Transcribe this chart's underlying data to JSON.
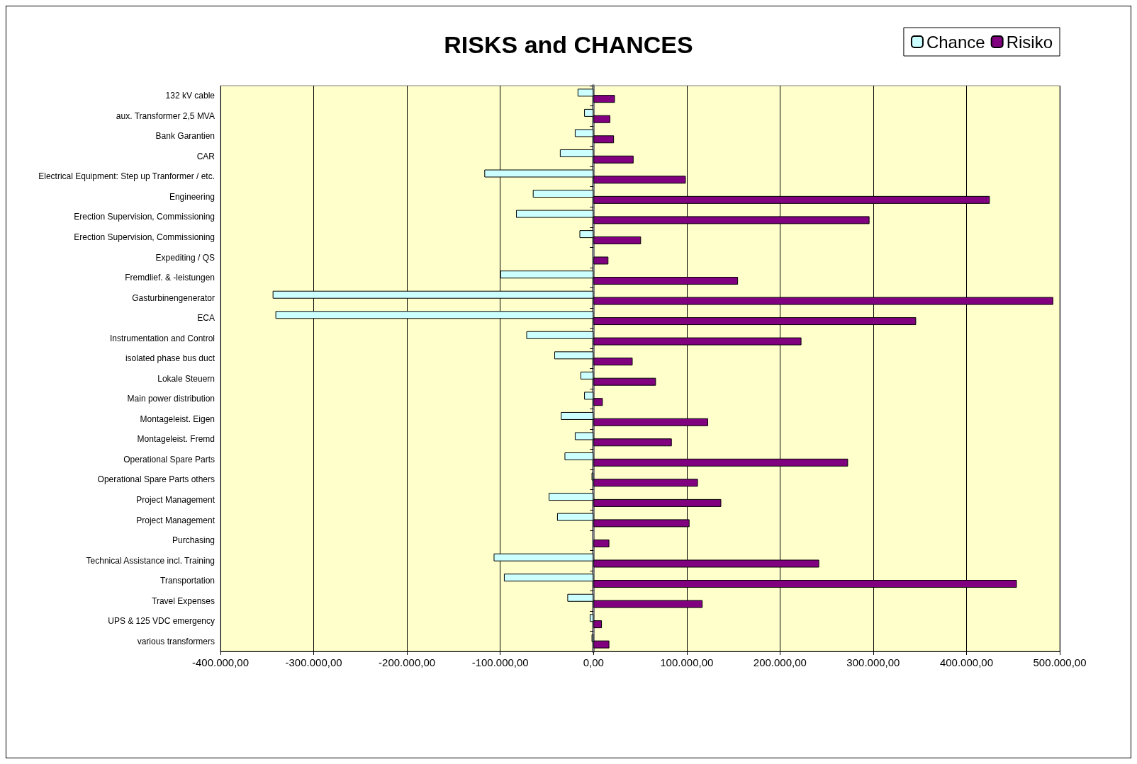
{
  "chart_data": {
    "type": "bar",
    "orientation": "horizontal",
    "title": "RISKS and CHANCES",
    "categories": [
      "132 kV cable",
      "aux. Transformer 2,5 MVA",
      "Bank Garantien",
      "CAR",
      "Electrical Equipment: Step up Tranformer / etc.",
      "Engineering",
      "Erection Supervision, Commissioning",
      "Erection Supervision, Commissioning",
      "Expediting / QS",
      "Fremdlief. & -leistungen",
      "Gasturbinengenerator",
      "ECA",
      "Instrumentation and Control",
      "isolated phase bus duct",
      "Lokale Steuern",
      "Main power distribution",
      "Montageleist. Eigen",
      "Montageleist. Fremd",
      "Operational Spare Parts",
      "Operational Spare Parts others",
      "Project Management",
      "Project Management",
      "Purchasing",
      "Technical Assistance incl. Training",
      "Transportation",
      "Travel Expenses",
      "UPS & 125 VDC emergency",
      "various transformers"
    ],
    "series": [
      {
        "name": "Chance",
        "color": "#ccffff",
        "values": [
          -17000,
          -10000,
          -20000,
          -36000,
          -117000,
          -65000,
          -83000,
          -15000,
          null,
          -100000,
          -344000,
          -341000,
          -72000,
          -42000,
          -14000,
          -10000,
          -35000,
          -20000,
          -31000,
          -2000,
          -48000,
          -39000,
          null,
          -107000,
          -96000,
          -28000,
          -4000,
          -2000
        ]
      },
      {
        "name": "Risiko",
        "color": "#800080",
        "values": [
          23000,
          18000,
          22000,
          43000,
          99000,
          425000,
          296000,
          51000,
          16000,
          155000,
          493000,
          346000,
          223000,
          42000,
          67000,
          10000,
          123000,
          84000,
          273000,
          112000,
          137000,
          103000,
          17000,
          242000,
          454000,
          117000,
          9000,
          17000
        ]
      }
    ],
    "xlim": [
      -400000,
      500000
    ],
    "xticks": [
      {
        "value": -400000,
        "label": "-400.000,00"
      },
      {
        "value": -300000,
        "label": "-300.000,00"
      },
      {
        "value": -200000,
        "label": "-200.000,00"
      },
      {
        "value": -100000,
        "label": "-100.000,00"
      },
      {
        "value": 0,
        "label": "0,00"
      },
      {
        "value": 100000,
        "label": "100.000,00"
      },
      {
        "value": 200000,
        "label": "200.000,00"
      },
      {
        "value": 300000,
        "label": "300.000,00"
      },
      {
        "value": 400000,
        "label": "400.000,00"
      },
      {
        "value": 500000,
        "label": "500.000,00"
      }
    ],
    "grid": "x",
    "legend": "top right"
  }
}
